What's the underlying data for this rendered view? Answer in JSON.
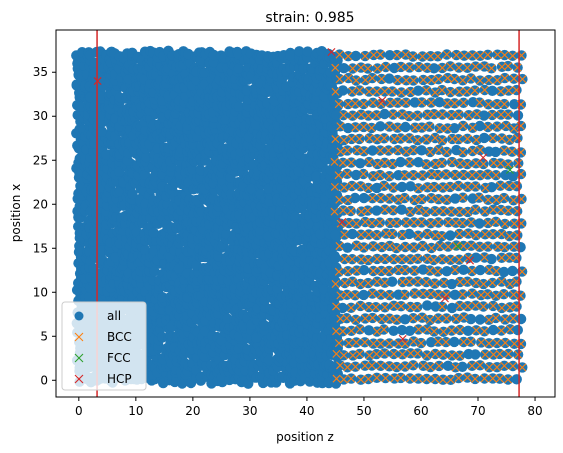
{
  "chart_data": {
    "type": "scatter",
    "title": "strain: 0.985",
    "xlabel": "position z",
    "ylabel": "position x",
    "xlim": [
      -4,
      83.5
    ],
    "ylim": [
      -1.9,
      39.8
    ],
    "xticks": [
      0,
      10,
      20,
      30,
      40,
      50,
      60,
      70,
      80
    ],
    "yticks": [
      0,
      5,
      10,
      15,
      20,
      25,
      30,
      35
    ],
    "grid": false,
    "legend_position": "lower-left",
    "vertical_lines": [
      {
        "x": 3.2,
        "color": "#d62728"
      },
      {
        "x": 77.2,
        "color": "#d62728"
      }
    ],
    "series": [
      {
        "name": "all",
        "marker": "circle",
        "color": "#1f77b4",
        "x_range": [
          0,
          78
        ],
        "y_range": [
          0,
          37.5
        ],
        "lattice_ordered_from_x": 45
      },
      {
        "name": "BCC",
        "marker": "x",
        "color": "#ff7f0e",
        "x_range": [
          45,
          78
        ],
        "y_range": [
          0,
          37.5
        ]
      },
      {
        "name": "FCC",
        "marker": "x",
        "color": "#2ca02c",
        "points": [
          [
            66.5,
            15.2
          ],
          [
            75.6,
            23.9
          ]
        ]
      },
      {
        "name": "HCP",
        "marker": "x",
        "color": "#d62728",
        "points": [
          [
            3.3,
            34.0
          ],
          [
            44.3,
            37.3
          ],
          [
            46.2,
            18.0
          ],
          [
            53.2,
            31.8
          ],
          [
            56.8,
            4.7
          ],
          [
            64.2,
            9.3
          ],
          [
            68.6,
            13.6
          ],
          [
            70.9,
            25.3
          ]
        ]
      }
    ]
  }
}
